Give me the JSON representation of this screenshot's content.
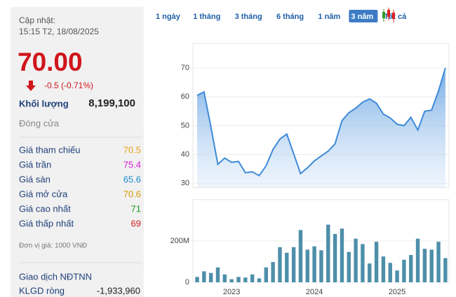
{
  "tabs": [
    "1 ngày",
    "1 tháng",
    "3 tháng",
    "6 tháng",
    "1 năm",
    "3 năm",
    "Tất cả"
  ],
  "active_tab": "3 năm",
  "panel": {
    "update_label": "Cập nhật:",
    "update_time": "15:15 T2, 18/08/2025",
    "price": "70.00",
    "change": "-0.5 (-0.71%)",
    "volume_label": "Khối lượng",
    "volume": "8,199,100",
    "close_label": "Đóng cửa",
    "stats": [
      {
        "label": "Giá tham chiếu",
        "value": "70.5",
        "color": "#e8a317"
      },
      {
        "label": "Giá trần",
        "value": "75.4",
        "color": "#d81bd8"
      },
      {
        "label": "Giá sàn",
        "value": "65.6",
        "color": "#1a8ccf"
      },
      {
        "label": "Giá mở cửa",
        "value": "70.6",
        "color": "#d89a00"
      },
      {
        "label": "Giá cao nhất",
        "value": "71",
        "color": "#1f9a1f"
      },
      {
        "label": "Giá thấp nhất",
        "value": "69",
        "color": "#d42020"
      }
    ],
    "unit_note": "Đơn vị giá: 1000 VNĐ",
    "foreign_title": "Giao dịch NĐTNN",
    "net_label": "KLGD ròng",
    "net_value": "-1,933,960"
  },
  "chart_data": [
    {
      "type": "area",
      "color": "#3f8ad8",
      "values": [
        60.5,
        61.7,
        49.5,
        36.6,
        38.8,
        37.3,
        37.6,
        33.7,
        34,
        32.7,
        36.1,
        41.7,
        45.4,
        47.1,
        40.3,
        33.4,
        35.4,
        37.8,
        39.5,
        41.2,
        43.7,
        51.7,
        54.5,
        56.1,
        58.1,
        59.3,
        57.8,
        54,
        52.7,
        50.5,
        50,
        52.9,
        48.5,
        55,
        55.4,
        62,
        70
      ],
      "ylim": [
        28.5,
        78.5
      ],
      "yticks": [
        30,
        40,
        50,
        60,
        70
      ],
      "grid": true
    },
    {
      "type": "bar",
      "color": "#4d8faa",
      "categories": [
        null,
        null,
        null,
        null,
        null,
        "2023",
        null,
        null,
        null,
        null,
        null,
        null,
        null,
        null,
        null,
        null,
        null,
        "2024",
        null,
        null,
        null,
        null,
        null,
        null,
        null,
        null,
        null,
        null,
        null,
        "2025",
        null,
        null,
        null,
        null,
        null,
        null,
        null
      ],
      "values": [
        26000000,
        53000000,
        45000000,
        72000000,
        38000000,
        15000000,
        26000000,
        23000000,
        38000000,
        19000000,
        72000000,
        98000000,
        170000000,
        143000000,
        170000000,
        253000000,
        158000000,
        174000000,
        155000000,
        279000000,
        234000000,
        260000000,
        147000000,
        211000000,
        185000000,
        91000000,
        196000000,
        125000000,
        94000000,
        57000000,
        109000000,
        132000000,
        211000000,
        162000000,
        158000000,
        196000000,
        117000000
      ],
      "ylim": [
        0,
        400000000
      ],
      "yticks": [
        0,
        {
          "value": 200000000,
          "label": "200M"
        }
      ],
      "grid": true
    }
  ]
}
